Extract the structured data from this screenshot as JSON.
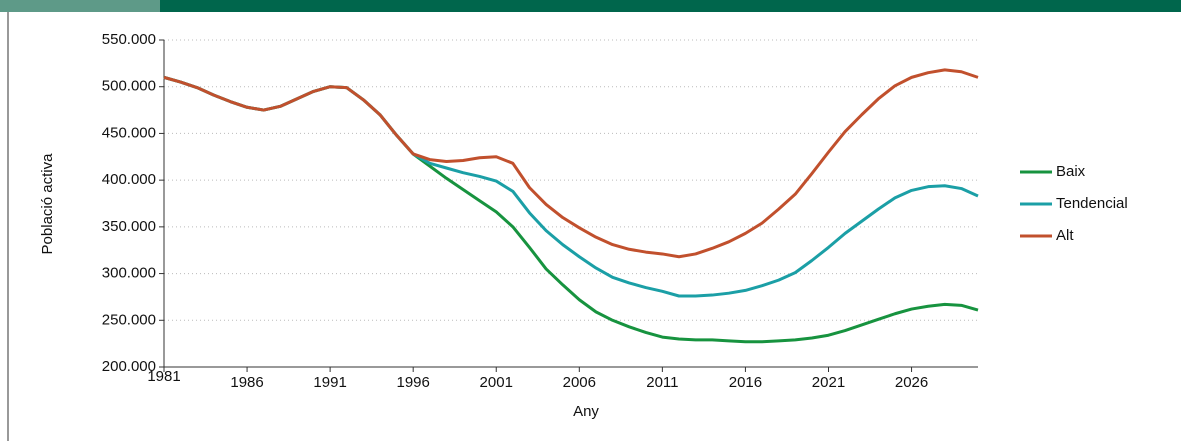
{
  "chart_data": {
    "type": "line",
    "x_label": "Any",
    "y_label": "Població activa",
    "x": [
      1981,
      1982,
      1983,
      1984,
      1985,
      1986,
      1987,
      1988,
      1989,
      1990,
      1991,
      1992,
      1993,
      1994,
      1995,
      1996,
      1997,
      1998,
      1999,
      2000,
      2001,
      2002,
      2003,
      2004,
      2005,
      2006,
      2007,
      2008,
      2009,
      2010,
      2011,
      2012,
      2013,
      2014,
      2015,
      2016,
      2017,
      2018,
      2019,
      2020,
      2021,
      2022,
      2023,
      2024,
      2025,
      2026,
      2027,
      2028,
      2029,
      2030
    ],
    "series": [
      {
        "name": "Baix",
        "color": "#17933f",
        "values": [
          510000,
          505000,
          499000,
          491000,
          484000,
          478000,
          475000,
          479000,
          487000,
          495000,
          500000,
          499000,
          486000,
          470000,
          448000,
          428000,
          415000,
          402000,
          390000,
          378000,
          366000,
          350000,
          328000,
          305000,
          288000,
          272000,
          259000,
          250000,
          243000,
          237000,
          232000,
          230000,
          229000,
          229000,
          228000,
          227000,
          227000,
          228000,
          229000,
          231000,
          234000,
          239000,
          245000,
          251000,
          257000,
          262000,
          265000,
          267000,
          266000,
          261000
        ]
      },
      {
        "name": "Tendencial",
        "color": "#1b9fa6",
        "values": [
          510000,
          505000,
          499000,
          491000,
          484000,
          478000,
          475000,
          479000,
          487000,
          495000,
          500000,
          499000,
          486000,
          470000,
          448000,
          428000,
          418000,
          413000,
          408000,
          404000,
          399000,
          388000,
          365000,
          346000,
          331000,
          318000,
          306000,
          296000,
          290000,
          285000,
          281000,
          276000,
          276000,
          277000,
          279000,
          282000,
          287000,
          293000,
          301000,
          314000,
          328000,
          343000,
          356000,
          369000,
          381000,
          389000,
          393000,
          394000,
          391000,
          383000
        ]
      },
      {
        "name": "Alt",
        "color": "#c1502d",
        "values": [
          510000,
          505000,
          499000,
          491000,
          484000,
          478000,
          475000,
          479000,
          487000,
          495000,
          500000,
          499000,
          486000,
          470000,
          448000,
          428000,
          422000,
          420000,
          421000,
          424000,
          425000,
          418000,
          392000,
          374000,
          360000,
          349000,
          339000,
          331000,
          326000,
          323000,
          321000,
          318000,
          321000,
          327000,
          334000,
          343000,
          354000,
          369000,
          385000,
          407000,
          430000,
          452000,
          470000,
          487000,
          501000,
          510000,
          515000,
          518000,
          516000,
          510000
        ]
      }
    ],
    "xlim": [
      1981,
      2030
    ],
    "xticks": [
      1981,
      1986,
      1991,
      1996,
      2001,
      2006,
      2011,
      2016,
      2021,
      2026
    ],
    "ylim": [
      200000,
      550000
    ],
    "yticks": [
      {
        "value": 200000,
        "label": "200.000"
      },
      {
        "value": 250000,
        "label": "250.000"
      },
      {
        "value": 300000,
        "label": "300.000"
      },
      {
        "value": 350000,
        "label": "350.000"
      },
      {
        "value": 400000,
        "label": "400.000"
      },
      {
        "value": 450000,
        "label": "450.000"
      },
      {
        "value": 500000,
        "label": "500.000"
      },
      {
        "value": 550000,
        "label": "550.000"
      }
    ],
    "grid": true,
    "legend": "right"
  }
}
